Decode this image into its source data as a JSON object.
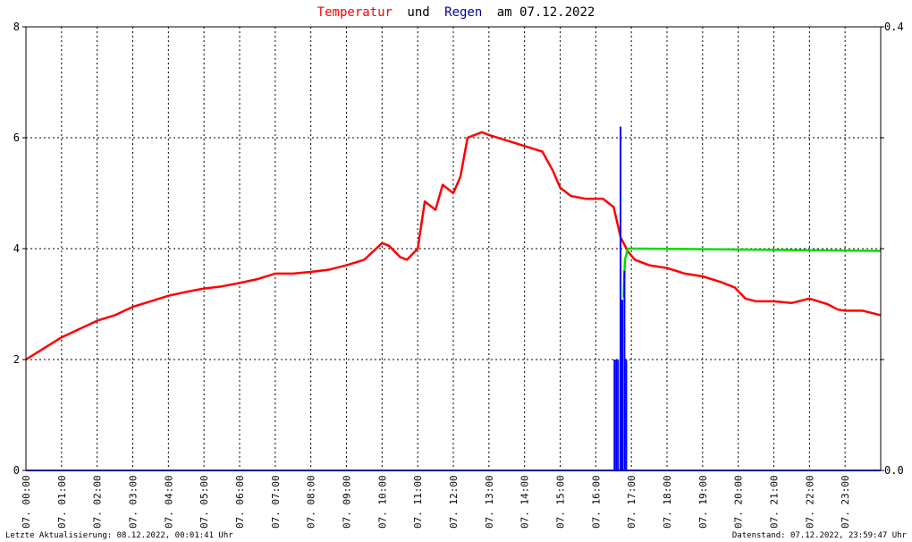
{
  "title": {
    "part1": "Temperatur",
    "part2": "und",
    "part3": "Regen",
    "part4": "am 07.12.2022",
    "color_temp": "#ff0000",
    "color_rain": "#000099",
    "color_text": "#000000"
  },
  "footer": {
    "left": "Letzte Aktualisierung: 08.12.2022, 00:01:41 Uhr",
    "right": "Datenstand: 07.12.2022, 23:59:47 Uhr"
  },
  "chart_data": {
    "type": "line",
    "x_unit": "hour of day",
    "xlim": [
      0,
      24
    ],
    "grid": true,
    "y_left": {
      "ylim": [
        0,
        8
      ],
      "ticks": [
        "0",
        "2",
        "4",
        "6",
        "8"
      ]
    },
    "y_right": {
      "ylim": [
        0,
        0.4
      ],
      "ticks": [
        "0.0",
        "0.4"
      ]
    },
    "x_tick_labels": [
      "07. 00:00",
      "07. 01:00",
      "07. 02:00",
      "07. 03:00",
      "07. 04:00",
      "07. 05:00",
      "07. 06:00",
      "07. 07:00",
      "07. 08:00",
      "07. 09:00",
      "07. 10:00",
      "07. 11:00",
      "07. 12:00",
      "07. 13:00",
      "07. 14:00",
      "07. 15:00",
      "07. 16:00",
      "07. 17:00",
      "07. 18:00",
      "07. 19:00",
      "07. 20:00",
      "07. 21:00",
      "07. 22:00",
      "07. 23:00"
    ],
    "series": [
      {
        "axis": "left",
        "color": "#ff0000",
        "points": [
          [
            0,
            2.0
          ],
          [
            0.5,
            2.2
          ],
          [
            1,
            2.4
          ],
          [
            1.5,
            2.55
          ],
          [
            2,
            2.7
          ],
          [
            2.5,
            2.8
          ],
          [
            3,
            2.95
          ],
          [
            3.5,
            3.05
          ],
          [
            4,
            3.15
          ],
          [
            4.5,
            3.22
          ],
          [
            5,
            3.28
          ],
          [
            5.5,
            3.32
          ],
          [
            6,
            3.38
          ],
          [
            6.5,
            3.45
          ],
          [
            7,
            3.55
          ],
          [
            7.5,
            3.55
          ],
          [
            8,
            3.58
          ],
          [
            8.5,
            3.62
          ],
          [
            9,
            3.7
          ],
          [
            9.5,
            3.8
          ],
          [
            10,
            4.1
          ],
          [
            10.2,
            4.05
          ],
          [
            10.5,
            3.85
          ],
          [
            10.7,
            3.8
          ],
          [
            11,
            4.0
          ],
          [
            11.2,
            4.85
          ],
          [
            11.5,
            4.7
          ],
          [
            11.7,
            5.15
          ],
          [
            12,
            5.0
          ],
          [
            12.2,
            5.3
          ],
          [
            12.4,
            6.0
          ],
          [
            12.8,
            6.1
          ],
          [
            13,
            6.05
          ],
          [
            13.5,
            5.95
          ],
          [
            14,
            5.85
          ],
          [
            14.5,
            5.75
          ],
          [
            14.8,
            5.4
          ],
          [
            15,
            5.1
          ],
          [
            15.3,
            4.95
          ],
          [
            15.7,
            4.9
          ],
          [
            16.2,
            4.9
          ],
          [
            16.5,
            4.75
          ],
          [
            16.7,
            4.2
          ],
          [
            16.9,
            3.95
          ],
          [
            17.1,
            3.8
          ],
          [
            17.5,
            3.7
          ],
          [
            18,
            3.65
          ],
          [
            18.5,
            3.55
          ],
          [
            19,
            3.5
          ],
          [
            19.5,
            3.4
          ],
          [
            19.9,
            3.3
          ],
          [
            20.2,
            3.1
          ],
          [
            20.5,
            3.05
          ],
          [
            21,
            3.05
          ],
          [
            21.5,
            3.02
          ],
          [
            22,
            3.1
          ],
          [
            22.5,
            3.0
          ],
          [
            22.8,
            2.9
          ],
          [
            23,
            2.88
          ],
          [
            23.5,
            2.88
          ],
          [
            24,
            2.8
          ]
        ]
      },
      {
        "axis": "right",
        "color": "#00dd00",
        "points": [
          [
            16.78,
            0.156
          ],
          [
            16.82,
            0.19
          ],
          [
            16.9,
            0.2
          ],
          [
            17.3,
            0.2
          ],
          [
            24,
            0.198
          ]
        ]
      },
      {
        "axis": "right",
        "color": "#0000ff",
        "type": "bar",
        "points": [
          [
            16.5,
            0.1
          ],
          [
            16.55,
            0.1
          ],
          [
            16.6,
            0.1
          ],
          [
            16.67,
            0.31
          ],
          [
            16.72,
            0.154
          ],
          [
            16.78,
            0.18
          ],
          [
            16.83,
            0.1
          ]
        ]
      }
    ]
  }
}
